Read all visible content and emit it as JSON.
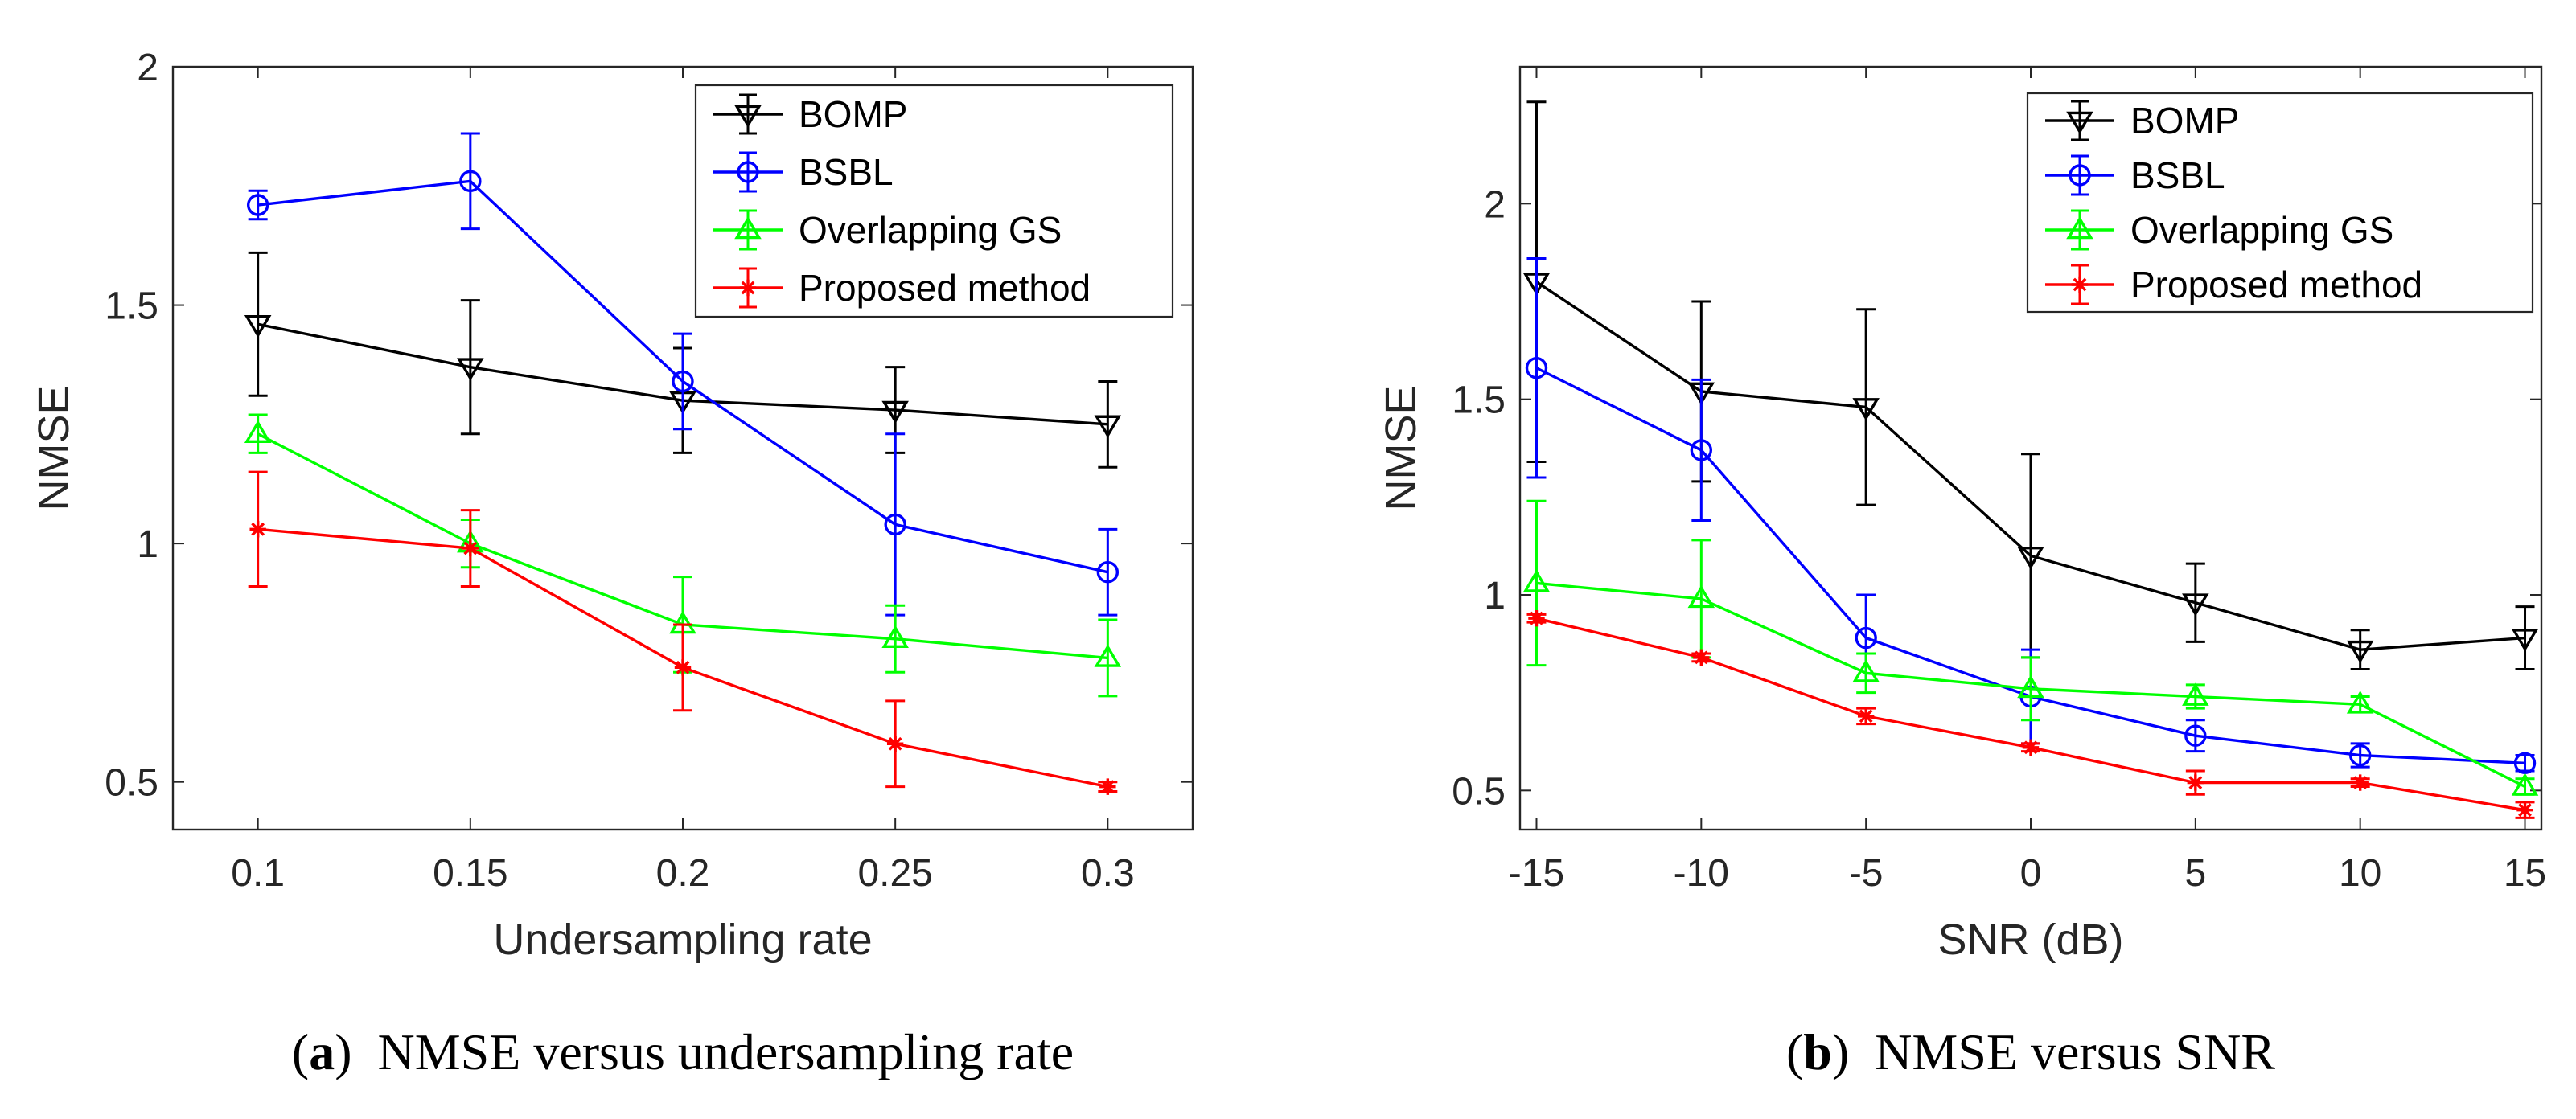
{
  "chart_data": [
    {
      "type": "line",
      "error_bars": true,
      "x": [
        0.1,
        0.15,
        0.2,
        0.25,
        0.3
      ],
      "x_tick_labels": [
        "0.1",
        "0.15",
        "0.2",
        "0.25",
        "0.3"
      ],
      "xlim": [
        0.08,
        0.32
      ],
      "xlabel": "Undersampling rate",
      "ylim": [
        0.4,
        2.0
      ],
      "y_ticks": [
        0.5,
        1,
        1.5,
        2
      ],
      "y_tick_labels": [
        "0.5",
        "1",
        "1.5",
        "2"
      ],
      "ylabel": "NMSE",
      "legend_position": "top-right",
      "caption_letter": "a",
      "caption_text": "NMSE versus undersampling rate",
      "series": [
        {
          "name": "BOMP",
          "color": "#000000",
          "marker": "triangle-down",
          "values": [
            1.46,
            1.37,
            1.3,
            1.28,
            1.25
          ],
          "errors": [
            0.15,
            0.14,
            0.11,
            0.09,
            0.09
          ]
        },
        {
          "name": "BSBL",
          "color": "#0000ff",
          "marker": "circle",
          "values": [
            1.71,
            1.76,
            1.34,
            1.04,
            0.94
          ],
          "errors": [
            0.03,
            0.1,
            0.1,
            0.19,
            0.09
          ]
        },
        {
          "name": "Overlapping GS",
          "color": "#00ff00",
          "marker": "triangle-up",
          "values": [
            1.23,
            1.0,
            0.83,
            0.8,
            0.76
          ],
          "errors": [
            0.04,
            0.05,
            0.1,
            0.07,
            0.08
          ]
        },
        {
          "name": "Proposed method",
          "color": "#ff0000",
          "marker": "asterisk",
          "values": [
            1.03,
            0.99,
            0.74,
            0.58,
            0.49
          ],
          "errors": [
            0.12,
            0.08,
            0.09,
            0.09,
            0.01
          ]
        }
      ]
    },
    {
      "type": "line",
      "error_bars": true,
      "x": [
        -15,
        -10,
        -5,
        0,
        5,
        10,
        15
      ],
      "x_tick_labels": [
        "-15",
        "-10",
        "-5",
        "0",
        "5",
        "10",
        "15"
      ],
      "xlim": [
        -15.5,
        15.5
      ],
      "xlabel": "SNR (dB)",
      "ylim": [
        0.4,
        2.35
      ],
      "y_ticks": [
        0.5,
        1,
        1.5,
        2
      ],
      "y_tick_labels": [
        "0.5",
        "1",
        "1.5",
        "2"
      ],
      "ylabel": "NMSE",
      "legend_position": "top-right",
      "caption_letter": "b",
      "caption_text": "NMSE versus SNR",
      "series": [
        {
          "name": "BOMP",
          "color": "#000000",
          "marker": "triangle-down",
          "values": [
            1.8,
            1.52,
            1.48,
            1.1,
            0.98,
            0.86,
            0.89
          ],
          "errors": [
            0.46,
            0.23,
            0.25,
            0.26,
            0.1,
            0.05,
            0.08
          ]
        },
        {
          "name": "BSBL",
          "color": "#0000ff",
          "marker": "circle",
          "values": [
            1.58,
            1.37,
            0.89,
            0.74,
            0.64,
            0.59,
            0.57
          ],
          "errors": [
            0.28,
            0.18,
            0.11,
            0.12,
            0.04,
            0.03,
            0.02
          ]
        },
        {
          "name": "Overlapping GS",
          "color": "#00ff00",
          "marker": "triangle-up",
          "values": [
            1.03,
            0.99,
            0.8,
            0.76,
            0.74,
            0.72,
            0.51
          ],
          "errors": [
            0.21,
            0.15,
            0.05,
            0.08,
            0.03,
            0.02,
            0.02
          ]
        },
        {
          "name": "Proposed method",
          "color": "#ff0000",
          "marker": "asterisk",
          "values": [
            0.94,
            0.84,
            0.69,
            0.61,
            0.52,
            0.52,
            0.45
          ],
          "errors": [
            0.01,
            0.01,
            0.02,
            0.01,
            0.03,
            0.01,
            0.02
          ]
        }
      ]
    }
  ]
}
